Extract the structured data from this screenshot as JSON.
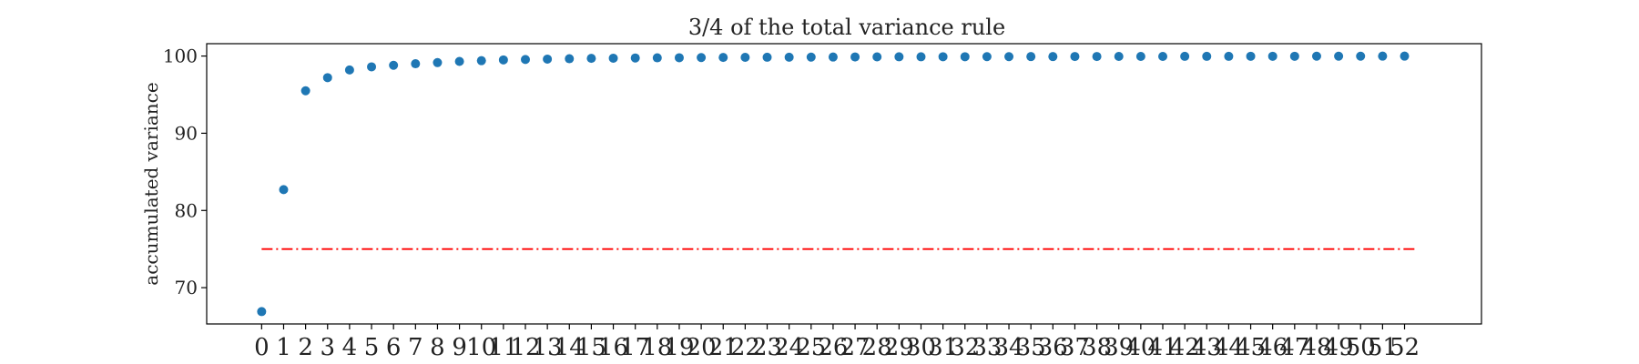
{
  "chart_data": {
    "type": "scatter",
    "title": "3/4 of the total variance rule",
    "xlabel": "",
    "ylabel": "accumulated variance",
    "xlim": [
      -2.5,
      55.5
    ],
    "ylim": [
      65.3,
      101.6
    ],
    "x": [
      0,
      1,
      2,
      3,
      4,
      5,
      6,
      7,
      8,
      9,
      10,
      11,
      12,
      13,
      14,
      15,
      16,
      17,
      18,
      19,
      20,
      21,
      22,
      23,
      24,
      25,
      26,
      27,
      28,
      29,
      30,
      31,
      32,
      33,
      34,
      35,
      36,
      37,
      38,
      39,
      40,
      41,
      42,
      43,
      44,
      45,
      46,
      47,
      48,
      49,
      50,
      51,
      52
    ],
    "y": [
      66.9,
      82.7,
      95.5,
      97.2,
      98.2,
      98.6,
      98.8,
      99.0,
      99.15,
      99.3,
      99.4,
      99.5,
      99.55,
      99.6,
      99.65,
      99.7,
      99.72,
      99.75,
      99.77,
      99.78,
      99.8,
      99.82,
      99.83,
      99.84,
      99.85,
      99.86,
      99.87,
      99.88,
      99.89,
      99.9,
      99.9,
      99.91,
      99.91,
      99.92,
      99.92,
      99.93,
      99.93,
      99.94,
      99.94,
      99.95,
      99.95,
      99.95,
      99.96,
      99.96,
      99.96,
      99.97,
      99.97,
      99.97,
      99.98,
      99.98,
      99.98,
      99.99,
      99.99
    ],
    "xticks": [
      "0",
      "1",
      "2",
      "3",
      "4",
      "5",
      "6",
      "7",
      "8",
      "9",
      "10",
      "11",
      "12",
      "13",
      "14",
      "15",
      "16",
      "17",
      "18",
      "19",
      "20",
      "21",
      "22",
      "23",
      "24",
      "25",
      "26",
      "27",
      "28",
      "29",
      "30",
      "31",
      "32",
      "33",
      "34",
      "35",
      "36",
      "37",
      "38",
      "39",
      "40",
      "41",
      "42",
      "43",
      "44",
      "45",
      "46",
      "47",
      "48",
      "49",
      "50",
      "51",
      "52"
    ],
    "yticks": [
      70,
      80,
      90,
      100
    ],
    "ytick_labels": [
      "70",
      "80",
      "90",
      "100"
    ],
    "threshold": {
      "value": 75,
      "x_start": 0,
      "x_end": 52.5,
      "style": "dashdot",
      "color": "#ff0000"
    },
    "point_color": "#1f77b4",
    "grid": false,
    "legend": "none"
  }
}
